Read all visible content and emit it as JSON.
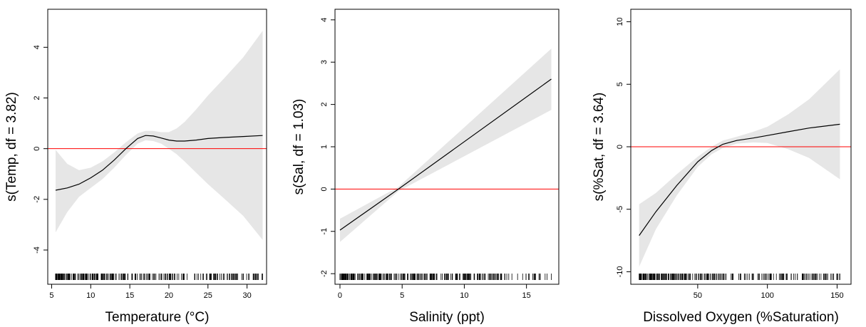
{
  "colors": {
    "band": "#e6e6e6",
    "curve": "#000000",
    "reference_line": "#ff0000"
  },
  "chart_data": [
    {
      "type": "line",
      "xlabel": "Temperature (°C)",
      "ylabel": "s(Temp, df = 3.82)",
      "xlim": [
        4.5,
        32.5
      ],
      "ylim": [
        -5.35,
        5.5
      ],
      "xticks": [
        5,
        10,
        15,
        20,
        25,
        30
      ],
      "xtick_labels": [
        "5",
        "10",
        "15",
        "20",
        "25",
        "30"
      ],
      "yticks": [
        -4,
        -2,
        0,
        2,
        4
      ],
      "ytick_labels": [
        "-4",
        "-2",
        "0",
        "2",
        "4"
      ],
      "reference_y": 0,
      "x": [
        5.5,
        7,
        8.5,
        10,
        11.5,
        13,
        14.5,
        16,
        17,
        18,
        19,
        20,
        21,
        22,
        23.5,
        25,
        27,
        29.5,
        32
      ],
      "y": [
        -1.64,
        -1.55,
        -1.4,
        -1.15,
        -0.85,
        -0.45,
        0.0,
        0.4,
        0.52,
        0.5,
        0.42,
        0.34,
        0.3,
        0.3,
        0.34,
        0.4,
        0.44,
        0.48,
        0.52
      ],
      "lower": [
        -3.3,
        -2.5,
        -1.9,
        -1.55,
        -1.2,
        -0.75,
        -0.25,
        0.2,
        0.33,
        0.3,
        0.2,
        0.0,
        -0.22,
        -0.5,
        -0.95,
        -1.4,
        -1.95,
        -2.65,
        -3.6
      ],
      "upper": [
        -0.05,
        -0.6,
        -0.85,
        -0.75,
        -0.5,
        -0.15,
        0.25,
        0.6,
        0.7,
        0.7,
        0.65,
        0.65,
        0.8,
        1.05,
        1.55,
        2.1,
        2.75,
        3.6,
        4.65
      ],
      "rug_range": [
        5.5,
        32
      ],
      "rug_extra": [
        26,
        27.5,
        28,
        29.5,
        32
      ]
    },
    {
      "type": "line",
      "xlabel": "Salinity (ppt)",
      "ylabel": "s(Sal, df = 1.03)",
      "xlim": [
        -0.4,
        17.6
      ],
      "ylim": [
        -2.25,
        4.25
      ],
      "xticks": [
        0,
        5,
        10,
        15
      ],
      "xtick_labels": [
        "0",
        "5",
        "10",
        "15"
      ],
      "yticks": [
        -2,
        -1,
        0,
        1,
        2,
        3,
        4
      ],
      "ytick_labels": [
        "-2",
        "-1",
        "0",
        "1",
        "2",
        "3",
        "4"
      ],
      "reference_y": 0,
      "x": [
        0,
        4.7,
        17
      ],
      "y": [
        -0.97,
        0.0,
        2.6
      ],
      "lower": [
        -1.25,
        -0.05,
        1.87
      ],
      "upper": [
        -0.7,
        0.05,
        3.32
      ],
      "rug_range": [
        0,
        17
      ],
      "rug_extra": [
        15.5,
        16,
        16.5,
        17
      ]
    },
    {
      "type": "line",
      "xlabel": "Dissolved Oxygen (%Saturation)",
      "ylabel": "s(%Sat, df = 3.64)",
      "xlim": [
        2,
        160
      ],
      "ylim": [
        -11,
        11
      ],
      "xticks": [
        50,
        100,
        150
      ],
      "xtick_labels": [
        "50",
        "100",
        "150"
      ],
      "yticks": [
        -10,
        -5,
        0,
        5,
        10
      ],
      "ytick_labels": [
        "-10",
        "-5",
        "0",
        "5",
        "10"
      ],
      "reference_y": 0,
      "x": [
        8,
        20,
        35,
        50,
        60,
        68,
        78,
        90,
        100,
        115,
        130,
        152
      ],
      "y": [
        -7.1,
        -5.2,
        -3.1,
        -1.2,
        -0.3,
        0.2,
        0.5,
        0.7,
        0.9,
        1.2,
        1.5,
        1.8
      ],
      "lower": [
        -9.6,
        -6.6,
        -3.9,
        -1.6,
        -0.6,
        -0.1,
        0.25,
        0.35,
        0.3,
        -0.2,
        -0.9,
        -2.6
      ],
      "upper": [
        -4.6,
        -3.7,
        -2.2,
        -0.8,
        0.0,
        0.5,
        0.8,
        1.2,
        1.6,
        2.6,
        3.8,
        6.2
      ],
      "rug_range": [
        8,
        152
      ],
      "rug_extra": [
        120,
        125,
        135,
        152
      ]
    }
  ]
}
